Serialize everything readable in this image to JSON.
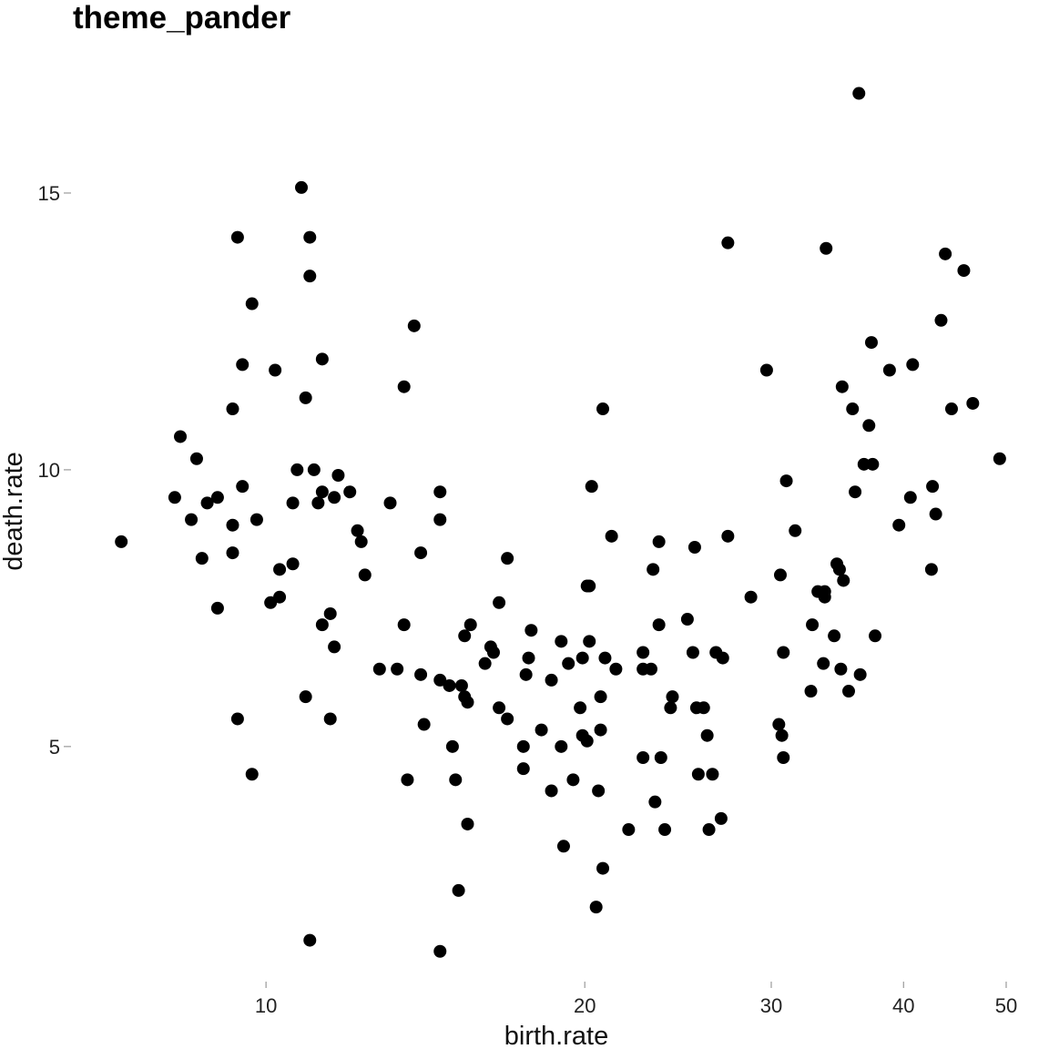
{
  "chart_data": {
    "type": "scatter",
    "title": "theme_pander",
    "xlabel": "birth.rate",
    "ylabel": "death.rate",
    "x_scale": "log",
    "xlim": [
      7.0,
      50.5
    ],
    "ylim": [
      1.0,
      17.5
    ],
    "x_ticks": [
      10,
      20,
      30,
      40,
      50
    ],
    "x_tick_labels": [
      "10",
      "20",
      "30",
      "40",
      "50"
    ],
    "y_ticks": [
      5,
      10,
      15
    ],
    "y_tick_labels": [
      "5",
      "10",
      "15"
    ],
    "grid": false,
    "legend": "none",
    "point_color": "#000000",
    "points": [
      [
        7.3,
        8.7
      ],
      [
        8.2,
        9.5
      ],
      [
        8.3,
        10.6
      ],
      [
        8.5,
        9.1
      ],
      [
        8.6,
        10.2
      ],
      [
        8.7,
        8.4
      ],
      [
        8.8,
        9.4
      ],
      [
        9.0,
        9.5
      ],
      [
        9.0,
        7.5
      ],
      [
        9.3,
        9.0
      ],
      [
        9.3,
        8.5
      ],
      [
        9.3,
        11.1
      ],
      [
        9.4,
        14.2
      ],
      [
        9.4,
        5.5
      ],
      [
        9.5,
        11.9
      ],
      [
        9.5,
        9.7
      ],
      [
        9.7,
        13.0
      ],
      [
        9.7,
        4.5
      ],
      [
        9.8,
        9.1
      ],
      [
        10.1,
        7.6
      ],
      [
        10.2,
        11.8
      ],
      [
        10.3,
        8.2
      ],
      [
        10.3,
        7.7
      ],
      [
        10.6,
        8.3
      ],
      [
        10.6,
        9.4
      ],
      [
        10.7,
        10.0
      ],
      [
        10.8,
        15.1
      ],
      [
        10.9,
        11.3
      ],
      [
        10.9,
        5.9
      ],
      [
        11.0,
        14.2
      ],
      [
        11.0,
        13.5
      ],
      [
        11.0,
        1.5
      ],
      [
        11.1,
        10.0
      ],
      [
        11.2,
        9.4
      ],
      [
        11.3,
        12.0
      ],
      [
        11.3,
        9.6
      ],
      [
        11.3,
        7.2
      ],
      [
        11.5,
        7.4
      ],
      [
        11.5,
        5.5
      ],
      [
        11.6,
        9.5
      ],
      [
        11.6,
        6.8
      ],
      [
        11.7,
        9.9
      ],
      [
        12.0,
        9.6
      ],
      [
        12.2,
        8.9
      ],
      [
        12.3,
        8.7
      ],
      [
        12.4,
        8.1
      ],
      [
        12.8,
        6.4
      ],
      [
        13.1,
        9.4
      ],
      [
        13.3,
        6.4
      ],
      [
        13.5,
        11.5
      ],
      [
        13.5,
        7.2
      ],
      [
        13.6,
        4.4
      ],
      [
        13.8,
        12.6
      ],
      [
        14.0,
        8.5
      ],
      [
        14.0,
        6.3
      ],
      [
        14.1,
        5.4
      ],
      [
        14.6,
        9.6
      ],
      [
        14.6,
        9.1
      ],
      [
        14.6,
        6.2
      ],
      [
        14.6,
        1.3
      ],
      [
        14.9,
        6.1
      ],
      [
        15.0,
        5.0
      ],
      [
        15.1,
        4.4
      ],
      [
        15.2,
        2.4
      ],
      [
        15.3,
        6.1
      ],
      [
        15.4,
        5.9
      ],
      [
        15.4,
        7.0
      ],
      [
        15.5,
        5.8
      ],
      [
        15.5,
        3.6
      ],
      [
        15.6,
        7.2
      ],
      [
        16.1,
        6.5
      ],
      [
        16.3,
        6.8
      ],
      [
        16.4,
        6.7
      ],
      [
        16.6,
        7.6
      ],
      [
        16.6,
        5.7
      ],
      [
        16.9,
        8.4
      ],
      [
        16.9,
        5.5
      ],
      [
        17.5,
        5.0
      ],
      [
        17.5,
        4.6
      ],
      [
        17.6,
        6.3
      ],
      [
        17.7,
        6.6
      ],
      [
        17.8,
        7.1
      ],
      [
        18.2,
        5.3
      ],
      [
        18.6,
        6.2
      ],
      [
        18.6,
        4.2
      ],
      [
        19.0,
        6.9
      ],
      [
        19.0,
        5.0
      ],
      [
        19.1,
        3.2
      ],
      [
        19.3,
        6.5
      ],
      [
        19.5,
        4.4
      ],
      [
        19.8,
        5.7
      ],
      [
        19.9,
        6.6
      ],
      [
        19.9,
        5.2
      ],
      [
        20.1,
        5.1
      ],
      [
        20.1,
        7.9
      ],
      [
        20.2,
        7.9
      ],
      [
        20.2,
        6.9
      ],
      [
        20.3,
        9.7
      ],
      [
        20.5,
        2.1
      ],
      [
        20.6,
        4.2
      ],
      [
        20.7,
        5.9
      ],
      [
        20.7,
        5.3
      ],
      [
        20.8,
        11.1
      ],
      [
        20.8,
        2.8
      ],
      [
        20.9,
        6.6
      ],
      [
        21.2,
        8.8
      ],
      [
        21.4,
        6.4
      ],
      [
        22.0,
        3.5
      ],
      [
        22.7,
        6.7
      ],
      [
        22.7,
        6.4
      ],
      [
        22.7,
        4.8
      ],
      [
        23.1,
        6.4
      ],
      [
        23.2,
        8.2
      ],
      [
        23.3,
        4.0
      ],
      [
        23.5,
        8.7
      ],
      [
        23.5,
        7.2
      ],
      [
        23.6,
        4.8
      ],
      [
        23.8,
        3.5
      ],
      [
        24.1,
        5.7
      ],
      [
        24.2,
        5.9
      ],
      [
        25.0,
        7.3
      ],
      [
        25.3,
        6.7
      ],
      [
        25.4,
        8.6
      ],
      [
        25.5,
        5.7
      ],
      [
        25.6,
        4.5
      ],
      [
        25.9,
        5.7
      ],
      [
        26.1,
        5.2
      ],
      [
        26.2,
        3.5
      ],
      [
        26.4,
        4.5
      ],
      [
        26.6,
        6.7
      ],
      [
        26.9,
        3.7
      ],
      [
        27.0,
        6.6
      ],
      [
        27.3,
        8.8
      ],
      [
        27.3,
        14.1
      ],
      [
        28.7,
        7.7
      ],
      [
        29.7,
        11.8
      ],
      [
        30.5,
        5.4
      ],
      [
        30.6,
        8.1
      ],
      [
        30.7,
        5.2
      ],
      [
        30.8,
        6.7
      ],
      [
        30.8,
        4.8
      ],
      [
        31.0,
        9.8
      ],
      [
        31.6,
        8.9
      ],
      [
        32.7,
        6.0
      ],
      [
        32.8,
        7.2
      ],
      [
        33.2,
        7.8
      ],
      [
        33.6,
        6.5
      ],
      [
        33.7,
        7.8
      ],
      [
        33.7,
        7.7
      ],
      [
        33.8,
        14.0
      ],
      [
        34.4,
        7.0
      ],
      [
        34.6,
        8.3
      ],
      [
        34.8,
        8.2
      ],
      [
        34.9,
        6.4
      ],
      [
        35.0,
        11.5
      ],
      [
        35.1,
        8.0
      ],
      [
        35.5,
        6.0
      ],
      [
        35.8,
        11.1
      ],
      [
        36.0,
        9.6
      ],
      [
        36.3,
        16.8
      ],
      [
        36.4,
        6.3
      ],
      [
        36.7,
        10.1
      ],
      [
        37.1,
        10.8
      ],
      [
        37.3,
        12.3
      ],
      [
        37.4,
        10.1
      ],
      [
        37.6,
        7.0
      ],
      [
        38.8,
        11.8
      ],
      [
        39.6,
        9.0
      ],
      [
        40.6,
        9.5
      ],
      [
        40.8,
        11.9
      ],
      [
        42.5,
        8.2
      ],
      [
        42.6,
        9.7
      ],
      [
        42.9,
        9.2
      ],
      [
        43.4,
        12.7
      ],
      [
        43.8,
        13.9
      ],
      [
        44.4,
        11.1
      ],
      [
        45.6,
        13.6
      ],
      [
        46.5,
        11.2
      ],
      [
        49.3,
        10.2
      ]
    ]
  }
}
